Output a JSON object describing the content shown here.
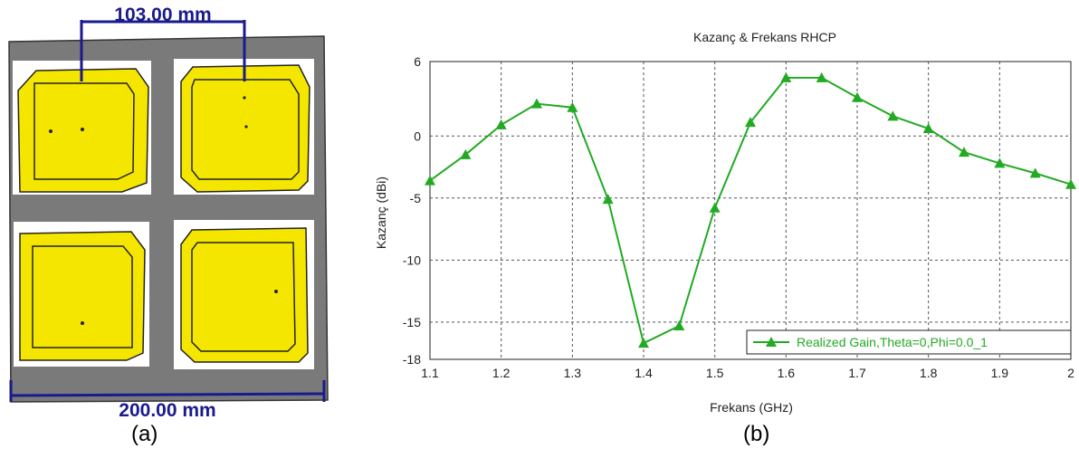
{
  "figure": {
    "left_label": "(a)",
    "right_label": "(b)"
  },
  "antenna_layout": {
    "patch_spacing_label": "103.00 mm",
    "board_width_label": "200.00 mm",
    "colors": {
      "board": "#7a7a7a",
      "patch": "#f5e600",
      "dimension": "#1a1a8c"
    }
  },
  "chart_data": {
    "type": "line",
    "title": "Kazanç & Frekans RHCP",
    "xlabel": "Frekans (GHz)",
    "ylabel": "Kazanç (dBi)",
    "xlim": [
      1.1,
      2.0
    ],
    "ylim": [
      -18,
      6
    ],
    "x_ticks": [
      "1.1",
      "1.2",
      "1.3",
      "1.4",
      "1.5",
      "1.6",
      "1.7",
      "1.8",
      "1.9",
      "2"
    ],
    "y_ticks": [
      "6",
      "0",
      "-5",
      "-10",
      "-15",
      "-18"
    ],
    "grid": true,
    "legend_position": "bottom-right",
    "series": [
      {
        "name": "Realized Gain,Theta=0,Phi=0.0_1",
        "color": "#22aa22",
        "marker": "triangle",
        "x": [
          1.1,
          1.15,
          1.2,
          1.25,
          1.3,
          1.35,
          1.4,
          1.45,
          1.5,
          1.55,
          1.6,
          1.65,
          1.7,
          1.75,
          1.8,
          1.85,
          1.9,
          1.95,
          2.0
        ],
        "y": [
          -3.6,
          -1.5,
          0.9,
          2.6,
          2.3,
          -5.1,
          -16.7,
          -15.3,
          -5.8,
          1.1,
          4.7,
          4.7,
          3.1,
          1.6,
          0.6,
          -1.3,
          -2.2,
          -3.0,
          -3.9
        ]
      }
    ]
  }
}
